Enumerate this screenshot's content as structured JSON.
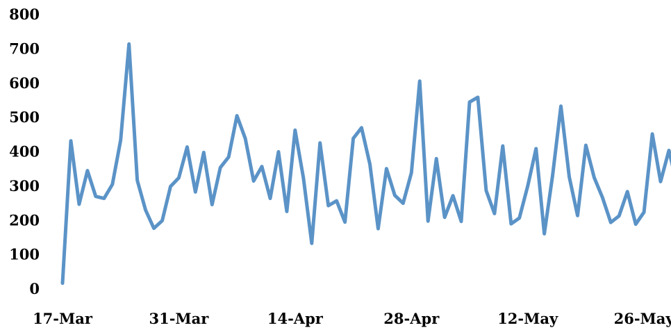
{
  "chart_data": {
    "type": "line",
    "title": "",
    "xlabel": "",
    "ylabel": "",
    "ylim": [
      0,
      800
    ],
    "y_ticks": [
      "0",
      "100",
      "200",
      "300",
      "400",
      "500",
      "600",
      "700",
      "800"
    ],
    "x_tick_labels": [
      "17-Mar",
      "31-Mar",
      "14-Apr",
      "28-Apr",
      "12-May",
      "26-May"
    ],
    "x_tick_dates": [
      "2020-03-17",
      "2020-03-31",
      "2020-04-14",
      "2020-04-28",
      "2020-05-12",
      "2020-05-26"
    ],
    "x_start": "2020-03-17",
    "x_end": "2020-05-29",
    "grid": false,
    "legend": "none",
    "line_color": "#5b93c7",
    "series": [
      {
        "values": [
          15,
          430,
          245,
          343,
          268,
          262,
          303,
          432,
          712,
          315,
          228,
          175,
          197,
          297,
          322,
          412,
          281,
          396,
          244,
          352,
          383,
          503,
          437,
          313,
          355,
          262,
          398,
          224,
          461,
          322,
          131,
          424,
          241,
          255,
          193,
          437,
          468,
          362,
          174,
          349,
          271,
          248,
          337,
          604,
          196,
          378,
          207,
          270,
          195,
          543,
          557,
          285,
          218,
          415,
          188,
          205,
          298,
          407,
          159,
          330,
          531,
          325,
          212,
          417,
          323,
          265,
          192,
          211,
          282,
          187,
          222,
          450,
          311,
          402,
          300
        ]
      }
    ]
  }
}
